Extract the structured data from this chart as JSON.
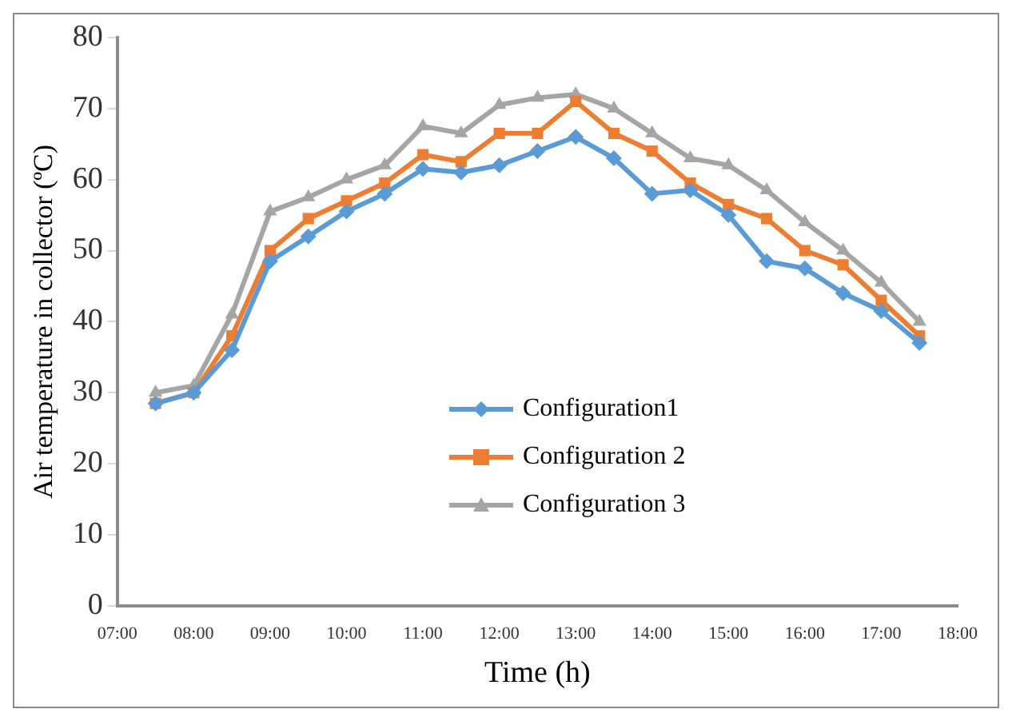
{
  "chart_data": {
    "type": "line",
    "xlabel": "Time (h)",
    "ylabel": "Air temperature in collector (ºC)",
    "x": [
      7.5,
      8,
      8.5,
      9,
      9.5,
      10,
      10.5,
      11,
      11.5,
      12,
      12.5,
      13,
      13.5,
      14,
      14.5,
      15,
      15.5,
      16,
      16.5,
      17,
      17.5
    ],
    "series": [
      {
        "name": "Configuration1",
        "color": "#5b9bd5",
        "marker": "diamond",
        "values": [
          28.5,
          30,
          36,
          48.5,
          52,
          55.5,
          58,
          61.5,
          61,
          62,
          64,
          66,
          63,
          58,
          58.5,
          55,
          48.5,
          47.5,
          44,
          41.5,
          37
        ]
      },
      {
        "name": "Configuration 2",
        "color": "#ed7d31",
        "marker": "square",
        "values": [
          28.5,
          30,
          38,
          50,
          54.5,
          57,
          59.5,
          63.5,
          62.5,
          66.5,
          66.5,
          71,
          66.5,
          64,
          59.5,
          56.5,
          54.5,
          50,
          48,
          43,
          38
        ]
      },
      {
        "name": "Configuration 3",
        "color": "#a5a5a5",
        "marker": "triangle",
        "values": [
          30,
          31,
          41,
          55.5,
          57.5,
          60,
          62,
          67.5,
          66.5,
          70.5,
          71.5,
          72,
          70,
          66.5,
          63,
          62,
          58.5,
          54,
          50,
          45.5,
          40
        ]
      }
    ],
    "xlim": [
      7,
      18
    ],
    "xticks": [
      {
        "value": 7,
        "label": "07:00"
      },
      {
        "value": 8,
        "label": "08:00"
      },
      {
        "value": 9,
        "label": "09:00"
      },
      {
        "value": 10,
        "label": "10:00"
      },
      {
        "value": 11,
        "label": "11:00"
      },
      {
        "value": 12,
        "label": "12:00"
      },
      {
        "value": 13,
        "label": "13:00"
      },
      {
        "value": 14,
        "label": "14:00"
      },
      {
        "value": 15,
        "label": "15:00"
      },
      {
        "value": 16,
        "label": "16:00"
      },
      {
        "value": 17,
        "label": "17:00"
      },
      {
        "value": 18,
        "label": "18:00"
      }
    ],
    "ylim": [
      0,
      80
    ],
    "yticks": [
      0,
      10,
      20,
      30,
      40,
      50,
      60,
      70,
      80
    ],
    "grid": false,
    "legend": "center",
    "line_style": "solid"
  }
}
